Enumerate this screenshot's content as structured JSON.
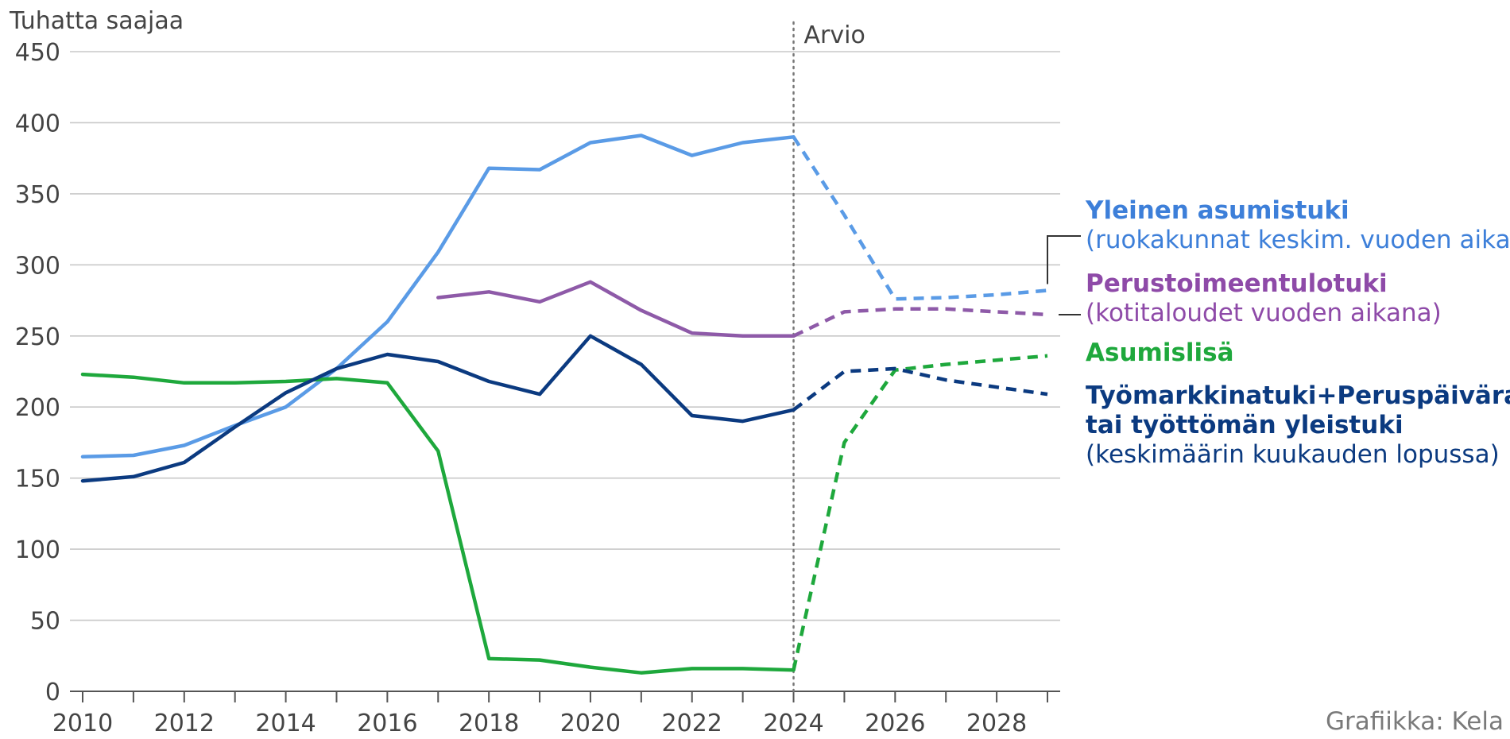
{
  "chart_data": {
    "type": "line",
    "ylabel": "Tuhatta saajaa",
    "ylim": [
      0,
      450
    ],
    "yticks": [
      0,
      50,
      100,
      150,
      200,
      250,
      300,
      350,
      400,
      450
    ],
    "xlim": [
      2010,
      2029
    ],
    "xticks": [
      2010,
      2012,
      2014,
      2016,
      2018,
      2020,
      2022,
      2024,
      2026,
      2028
    ],
    "grid": true,
    "forecast_start": 2024,
    "forecast_label": "Arvio",
    "series": [
      {
        "id": "yleinen",
        "name": "Yleinen asumistuki",
        "note": "(ruokakunnat keskim. vuoden aikana)",
        "color": "#5a9be6",
        "label_color": "#3d7fd9",
        "x": [
          2010,
          2011,
          2012,
          2013,
          2014,
          2015,
          2016,
          2017,
          2018,
          2019,
          2020,
          2021,
          2022,
          2023,
          2024,
          2025,
          2026,
          2027,
          2028,
          2029
        ],
        "values": [
          165,
          166,
          173,
          187,
          200,
          227,
          260,
          309,
          368,
          367,
          386,
          391,
          377,
          386,
          390,
          335,
          276,
          277,
          279,
          282
        ]
      },
      {
        "id": "perustoimeentulotuki",
        "name": "Perustoimeentulotuki",
        "note": "(kotitaloudet vuoden aikana)",
        "color": "#8e5aa8",
        "label_color": "#8e4aa8",
        "x": [
          2017,
          2018,
          2019,
          2020,
          2021,
          2022,
          2023,
          2024,
          2025,
          2026,
          2027,
          2028,
          2029
        ],
        "values": [
          277,
          281,
          274,
          288,
          268,
          252,
          250,
          250,
          267,
          269,
          269,
          267,
          265
        ]
      },
      {
        "id": "asumislisa",
        "name": "Asumislisä",
        "note": "",
        "color": "#1ea83c",
        "label_color": "#1ea83c",
        "x": [
          2010,
          2011,
          2012,
          2013,
          2014,
          2015,
          2016,
          2017,
          2018,
          2019,
          2020,
          2021,
          2022,
          2023,
          2024,
          2025,
          2026,
          2027,
          2028,
          2029
        ],
        "values": [
          223,
          221,
          217,
          217,
          218,
          220,
          217,
          169,
          23,
          22,
          17,
          13,
          16,
          16,
          15,
          175,
          226,
          230,
          233,
          236
        ]
      },
      {
        "id": "tyomarkkinatuki",
        "name": "Työmarkkinatuki+Peruspäiväraha",
        "name2": "tai työttömän yleistuki",
        "note": "(keskimäärin kuukauden lopussa)",
        "color": "#0b3a80",
        "label_color": "#0b3a80",
        "x": [
          2010,
          2011,
          2012,
          2013,
          2014,
          2015,
          2016,
          2017,
          2018,
          2019,
          2020,
          2021,
          2022,
          2023,
          2024,
          2025,
          2026,
          2027,
          2028,
          2029
        ],
        "values": [
          148,
          151,
          161,
          186,
          210,
          227,
          237,
          232,
          218,
          209,
          250,
          230,
          194,
          190,
          198,
          225,
          227,
          219,
          214,
          209
        ]
      }
    ]
  },
  "credit": "Grafiikka: Kela"
}
